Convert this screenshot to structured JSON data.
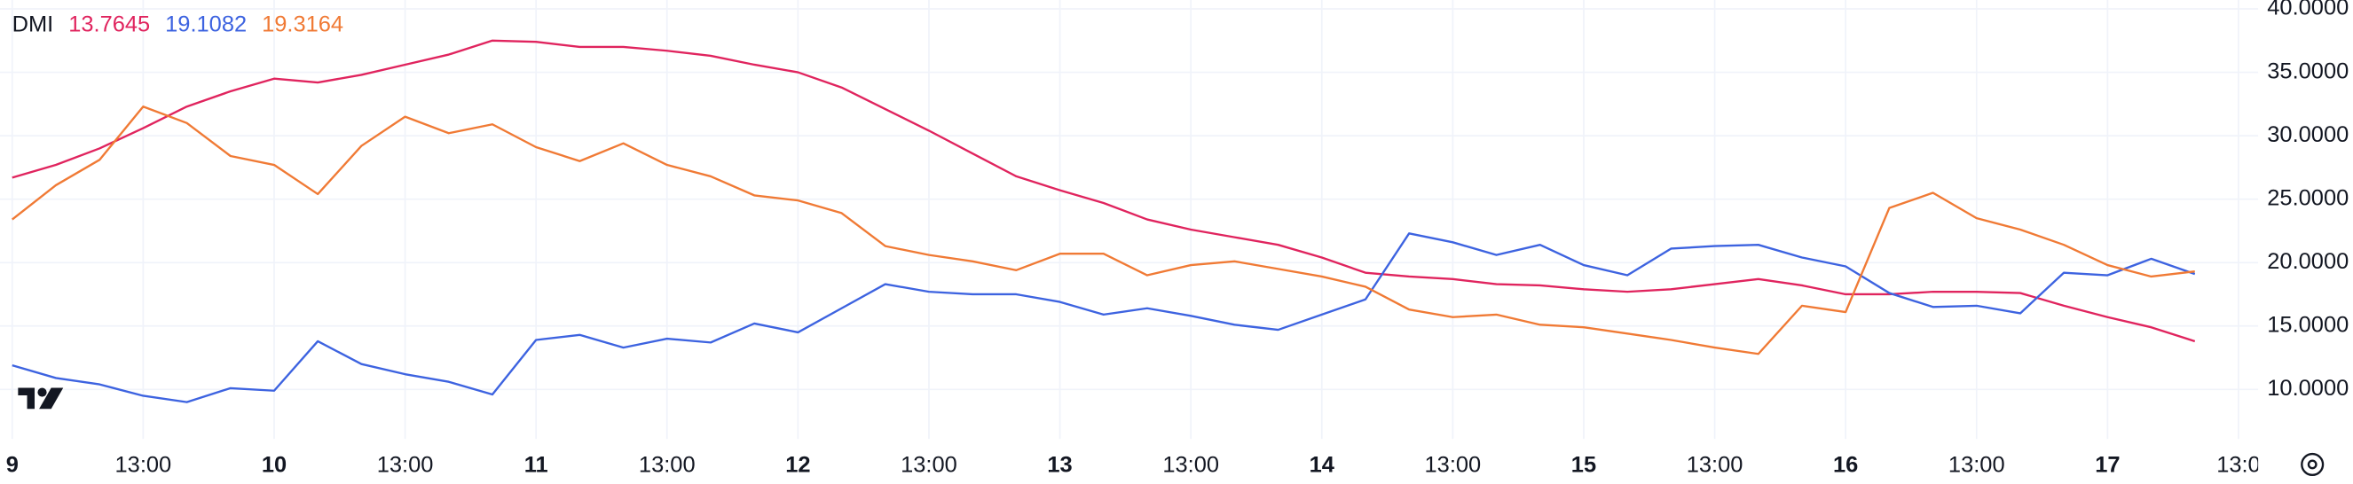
{
  "chart_data": {
    "type": "line",
    "legend": {
      "title": "DMI",
      "values": [
        13.7645,
        19.1082,
        19.3164
      ]
    },
    "xlim": [
      -0.28,
      51.45
    ],
    "ylim": [
      6.1,
      40.7
    ],
    "grid": true,
    "xticks": [
      {
        "value": 0,
        "label": "9"
      },
      {
        "value": 3,
        "label": "13:00"
      },
      {
        "value": 6,
        "label": "10"
      },
      {
        "value": 9,
        "label": "13:00"
      },
      {
        "value": 12,
        "label": "11"
      },
      {
        "value": 15,
        "label": "13:00"
      },
      {
        "value": 18,
        "label": "12"
      },
      {
        "value": 21,
        "label": "13:00"
      },
      {
        "value": 24,
        "label": "13"
      },
      {
        "value": 27,
        "label": "13:00"
      },
      {
        "value": 30,
        "label": "14"
      },
      {
        "value": 33,
        "label": "13:00"
      },
      {
        "value": 36,
        "label": "15"
      },
      {
        "value": 39,
        "label": "13:00"
      },
      {
        "value": 42,
        "label": "16"
      },
      {
        "value": 45,
        "label": "13:00"
      },
      {
        "value": 48,
        "label": "17"
      },
      {
        "value": 51,
        "label": "13:0"
      }
    ],
    "yticks": [
      {
        "value": 40,
        "label": "40.0000"
      },
      {
        "value": 35,
        "label": "35.0000"
      },
      {
        "value": 30,
        "label": "30.0000"
      },
      {
        "value": 25,
        "label": "25.0000"
      },
      {
        "value": 20,
        "label": "20.0000"
      },
      {
        "value": 15,
        "label": "15.0000"
      },
      {
        "value": 10,
        "label": "10.0000"
      }
    ],
    "series": [
      {
        "color": "#e0245e",
        "values": [
          26.7,
          27.7,
          29.0,
          30.6,
          32.3,
          33.5,
          34.5,
          34.2,
          34.8,
          35.6,
          36.4,
          37.5,
          37.4,
          37.0,
          37.0,
          36.7,
          36.3,
          35.6,
          35.0,
          33.8,
          32.1,
          30.4,
          28.6,
          26.8,
          25.7,
          24.7,
          23.4,
          22.6,
          22.0,
          21.4,
          20.4,
          19.2,
          18.9,
          18.7,
          18.3,
          18.2,
          17.9,
          17.7,
          17.9,
          18.3,
          18.7,
          18.2,
          17.5,
          17.5,
          17.7,
          17.7,
          17.6,
          16.6,
          15.7,
          14.9,
          13.8
        ]
      },
      {
        "color": "#3d63e0",
        "values": [
          11.9,
          10.9,
          10.4,
          9.5,
          9.0,
          10.1,
          9.9,
          13.8,
          12.0,
          11.2,
          10.6,
          9.6,
          13.9,
          14.3,
          13.3,
          14.0,
          13.7,
          15.2,
          14.5,
          16.4,
          18.3,
          17.7,
          17.5,
          17.5,
          16.9,
          15.9,
          16.4,
          15.8,
          15.1,
          14.7,
          15.9,
          17.1,
          22.3,
          21.6,
          20.6,
          21.4,
          19.8,
          19.0,
          21.1,
          21.3,
          21.4,
          20.4,
          19.7,
          17.6,
          16.5,
          16.6,
          16.0,
          19.2,
          19.0,
          20.3,
          19.1
        ]
      },
      {
        "color": "#f07a35",
        "values": [
          23.4,
          26.1,
          28.1,
          32.3,
          31.0,
          28.4,
          27.7,
          25.4,
          29.2,
          31.5,
          30.2,
          30.9,
          29.1,
          28.0,
          29.4,
          27.7,
          26.8,
          25.3,
          24.9,
          23.9,
          21.3,
          20.6,
          20.1,
          19.4,
          20.7,
          20.7,
          19.0,
          19.8,
          20.1,
          19.5,
          18.9,
          18.1,
          16.3,
          15.7,
          15.9,
          15.1,
          14.9,
          14.4,
          13.9,
          13.3,
          12.8,
          16.6,
          16.1,
          24.3,
          25.5,
          23.5,
          22.6,
          21.4,
          19.8,
          18.9,
          19.3
        ]
      }
    ]
  }
}
